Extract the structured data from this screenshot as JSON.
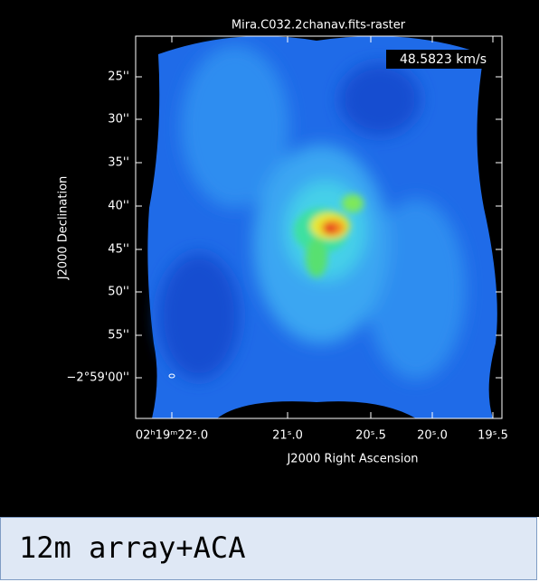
{
  "title": "Mira.C032.2chanav.fits-raster",
  "velocity_label": "48.5823 km/s",
  "axes": {
    "x_label": "J2000 Right Ascension",
    "y_label": "J2000 Declination",
    "x_ticks": [
      "02ʰ19ᵐ22ˢ.0",
      "21ˢ.0",
      "20ˢ.5",
      "20ˢ.0",
      "19ˢ.5"
    ],
    "y_ticks": [
      "25''",
      "30''",
      "35''",
      "40''",
      "45''",
      "50''",
      "55''",
      "−2°59'00''"
    ]
  },
  "caption": "12m array+ACA"
}
